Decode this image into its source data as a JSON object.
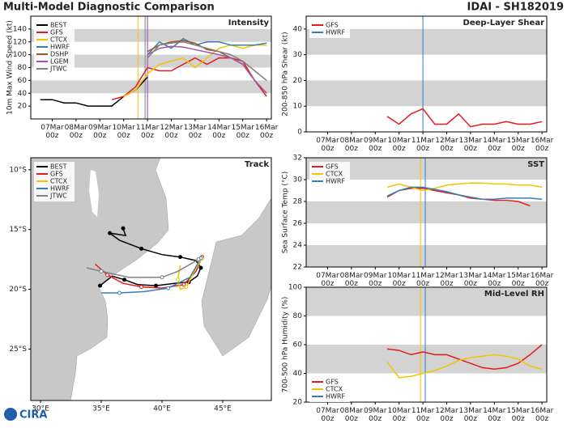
{
  "header": {
    "title": "Multi-Model Diagnostic Comparison",
    "storm": "IDAI - SH182019"
  },
  "logo": "CIRA",
  "chart_data": [
    {
      "type": "line",
      "title": "Intensity",
      "ylabel": "10m Max Wind Speed (kt)",
      "legend": "upper left",
      "x": [
        6.5,
        7,
        7.5,
        8,
        8.5,
        9,
        9.5,
        10,
        10.5,
        11,
        11.5,
        12,
        12.5,
        13,
        13.5,
        14,
        14.5,
        15,
        15.5,
        16
      ],
      "xlim": [
        6.1,
        16.2
      ],
      "ylim": [
        0,
        160
      ],
      "yticks": [
        20,
        40,
        60,
        80,
        100,
        120,
        140
      ],
      "xticks": [
        {
          "value": 7,
          "label": "07Mar 00z"
        },
        {
          "value": 8,
          "label": "08Mar 00z"
        },
        {
          "value": 9,
          "label": "09Mar 00z"
        },
        {
          "value": 10,
          "label": "10Mar 00z"
        },
        {
          "value": 11,
          "label": "11Mar 00z"
        },
        {
          "value": 12,
          "label": "12Mar 00z"
        },
        {
          "value": 13,
          "label": "13Mar 00z"
        },
        {
          "value": 14,
          "label": "14Mar 00z"
        },
        {
          "value": 15,
          "label": "15Mar 00z"
        },
        {
          "value": 16,
          "label": "16Mar 00z"
        }
      ],
      "vlines": [
        {
          "x": 10.6,
          "color": "#f2c500"
        },
        {
          "x": 10.9,
          "color": "#808080"
        },
        {
          "x": 11.0,
          "color": "#8e44ad"
        }
      ],
      "series": [
        {
          "name": "BEST",
          "color": "#000000",
          "values": [
            30,
            30,
            25,
            25,
            20,
            20,
            20,
            35,
            45,
            65,
            null,
            null,
            null,
            null,
            null,
            null,
            null,
            null,
            null,
            null
          ]
        },
        {
          "name": "GFS",
          "color": "#e41a1c",
          "values": [
            null,
            null,
            null,
            null,
            null,
            null,
            30,
            35,
            50,
            80,
            75,
            75,
            85,
            95,
            85,
            95,
            95,
            90,
            60,
            35
          ]
        },
        {
          "name": "CTCX",
          "color": "#f2c500",
          "values": [
            null,
            null,
            null,
            null,
            null,
            null,
            null,
            35,
            45,
            70,
            85,
            90,
            95,
            80,
            95,
            110,
            115,
            110,
            115,
            115
          ]
        },
        {
          "name": "HWRF",
          "color": "#377eb8",
          "values": [
            null,
            null,
            null,
            null,
            null,
            null,
            null,
            null,
            null,
            100,
            120,
            110,
            125,
            115,
            120,
            120,
            115,
            115,
            115,
            118
          ]
        },
        {
          "name": "DSHP",
          "color": "#a0522d",
          "values": [
            null,
            null,
            null,
            null,
            null,
            null,
            null,
            null,
            null,
            105,
            115,
            120,
            122,
            118,
            108,
            105,
            95,
            85,
            60,
            40
          ]
        },
        {
          "name": "LGEM",
          "color": "#9b59b6",
          "values": [
            null,
            null,
            null,
            null,
            null,
            null,
            null,
            null,
            null,
            100,
            110,
            113,
            112,
            108,
            104,
            100,
            95,
            85,
            60,
            40
          ]
        },
        {
          "name": "JTWC",
          "color": "#808080",
          "values": [
            null,
            null,
            null,
            null,
            null,
            null,
            null,
            null,
            null,
            95,
            115,
            118,
            120,
            115,
            110,
            105,
            100,
            90,
            75,
            60
          ]
        }
      ]
    },
    {
      "type": "line",
      "title": "Deep-Layer Shear",
      "ylabel": "200-850 hPa Shear (kt)",
      "legend": "upper left",
      "x": [
        9.5,
        10,
        10.5,
        11,
        11.5,
        12,
        12.5,
        13,
        13.5,
        14,
        14.5,
        15,
        15.5,
        16
      ],
      "xlim": [
        6.1,
        16.2
      ],
      "ylim": [
        0,
        45
      ],
      "yticks": [
        0,
        10,
        20,
        30,
        40
      ],
      "xticks": [
        {
          "value": 7,
          "label": "07Mar 00z"
        },
        {
          "value": 8,
          "label": "08Mar 00z"
        },
        {
          "value": 9,
          "label": "09Mar 00z"
        },
        {
          "value": 10,
          "label": "10Mar 00z"
        },
        {
          "value": 11,
          "label": "11Mar 00z"
        },
        {
          "value": 12,
          "label": "12Mar 00z"
        },
        {
          "value": 13,
          "label": "13Mar 00z"
        },
        {
          "value": 14,
          "label": "14Mar 00z"
        },
        {
          "value": 15,
          "label": "15Mar 00z"
        },
        {
          "value": 16,
          "label": "16Mar 00z"
        }
      ],
      "vlines": [
        {
          "x": 11.0,
          "color": "#377eb8"
        }
      ],
      "series": [
        {
          "name": "GFS",
          "color": "#e41a1c",
          "values": [
            6,
            3,
            7,
            9,
            3,
            3,
            7,
            2,
            3,
            3,
            4,
            3,
            3,
            4
          ]
        },
        {
          "name": "HWRF",
          "color": "#377eb8",
          "values": [
            null,
            null,
            null,
            null,
            null,
            null,
            null,
            null,
            null,
            null,
            null,
            null,
            null,
            null
          ]
        }
      ]
    },
    {
      "type": "track",
      "title": "Track",
      "legend": "upper left",
      "xlim": [
        29.2,
        49
      ],
      "ylim": [
        -29.3,
        -9
      ],
      "xticks": [
        {
          "value": 30,
          "label": "30°E"
        },
        {
          "value": 35,
          "label": "35°E"
        },
        {
          "value": 40,
          "label": "40°E"
        },
        {
          "value": 45,
          "label": "45°E"
        }
      ],
      "yticks": [
        {
          "value": -10,
          "label": "10°S"
        },
        {
          "value": -15,
          "label": "15°S"
        },
        {
          "value": -20,
          "label": "20°S"
        },
        {
          "value": -25,
          "label": "25°S"
        }
      ],
      "series": [
        {
          "name": "BEST",
          "color": "#000000",
          "x": [
            36.8,
            37.0,
            35.7,
            36.5,
            38.3,
            40.0,
            41.5,
            42.8,
            43.2,
            42.9,
            42.2,
            41.0,
            39.5,
            38.0,
            36.9,
            35.9,
            34.9
          ],
          "values": [
            -14.9,
            -15.5,
            -15.3,
            -15.9,
            -16.6,
            -17.1,
            -17.3,
            -17.6,
            -18.2,
            -18.9,
            -19.4,
            -19.5,
            -19.7,
            -19.6,
            -19.2,
            -18.9,
            -19.7
          ]
        },
        {
          "name": "GFS",
          "color": "#e41a1c",
          "x": [
            43.3,
            42.8,
            41.8,
            40.0,
            38.3,
            36.8,
            35.5,
            34.5
          ],
          "values": [
            -17.3,
            -18.5,
            -19.6,
            -19.9,
            -19.8,
            -19.5,
            -18.8,
            -17.9
          ]
        },
        {
          "name": "CTCX",
          "color": "#f2c500",
          "x": [
            43.3,
            42.6,
            42.0,
            41.5,
            41.3,
            41.5
          ],
          "values": [
            -17.4,
            -18.6,
            -19.8,
            -20.0,
            -19.2,
            -18.0
          ]
        },
        {
          "name": "HWRF",
          "color": "#377eb8",
          "x": [
            43.2,
            42.3,
            40.5,
            38.5,
            36.5,
            35.0
          ],
          "values": [
            -17.4,
            -19.0,
            -19.9,
            -20.2,
            -20.3,
            -20.3
          ]
        },
        {
          "name": "JTWC",
          "color": "#808080",
          "x": [
            43.0,
            41.3,
            40.0,
            37.3,
            35.0,
            33.8
          ],
          "values": [
            -17.5,
            -18.5,
            -19.0,
            -19.0,
            -18.5,
            -18.2
          ]
        }
      ]
    },
    {
      "type": "line",
      "title": "SST",
      "ylabel": "Sea Surface Temp (°C)",
      "legend": "upper left",
      "x": [
        9.5,
        10,
        10.5,
        11,
        11.5,
        12,
        12.5,
        13,
        13.5,
        14,
        14.5,
        15,
        15.5,
        16
      ],
      "xlim": [
        6.1,
        16.2
      ],
      "ylim": [
        22,
        32
      ],
      "yticks": [
        22,
        24,
        26,
        28,
        30,
        32
      ],
      "xticks": [
        {
          "value": 7,
          "label": "07Mar 00z"
        },
        {
          "value": 8,
          "label": "08Mar 00z"
        },
        {
          "value": 9,
          "label": "09Mar 00z"
        },
        {
          "value": 10,
          "label": "10Mar 00z"
        },
        {
          "value": 11,
          "label": "11Mar 00z"
        },
        {
          "value": 12,
          "label": "12Mar 00z"
        },
        {
          "value": 13,
          "label": "13Mar 00z"
        },
        {
          "value": 14,
          "label": "14Mar 00z"
        },
        {
          "value": 15,
          "label": "15Mar 00z"
        },
        {
          "value": 16,
          "label": "16Mar 00z"
        }
      ],
      "vlines": [
        {
          "x": 10.9,
          "color": "#f2c500"
        },
        {
          "x": 11.1,
          "color": "#377eb8"
        }
      ],
      "series": [
        {
          "name": "GFS",
          "color": "#e41a1c",
          "values": [
            28.4,
            29.0,
            29.2,
            29.2,
            29.0,
            28.8,
            28.6,
            28.3,
            28.2,
            28.1,
            28.1,
            28.0,
            27.6,
            null
          ]
        },
        {
          "name": "CTCX",
          "color": "#f2c500",
          "values": [
            29.3,
            29.6,
            29.3,
            29.0,
            29.2,
            29.5,
            29.6,
            29.7,
            29.7,
            29.6,
            29.6,
            29.5,
            29.5,
            29.3
          ]
        },
        {
          "name": "HWRF",
          "color": "#377eb8",
          "values": [
            28.5,
            29.0,
            29.3,
            29.3,
            29.1,
            28.9,
            28.6,
            28.4,
            28.2,
            28.2,
            28.3,
            28.3,
            28.3,
            28.2
          ]
        }
      ]
    },
    {
      "type": "line",
      "title": "Mid-Level RH",
      "ylabel": "700-500 hPa Humidity (%)",
      "legend": "lower left",
      "x": [
        9.5,
        10,
        10.5,
        11,
        11.5,
        12,
        12.5,
        13,
        13.5,
        14,
        14.5,
        15,
        15.5,
        16
      ],
      "xlim": [
        6.1,
        16.2
      ],
      "ylim": [
        20,
        100
      ],
      "yticks": [
        20,
        40,
        60,
        80,
        100
      ],
      "xticks": [
        {
          "value": 7,
          "label": "07Mar 00z"
        },
        {
          "value": 8,
          "label": "08Mar 00z"
        },
        {
          "value": 9,
          "label": "09Mar 00z"
        },
        {
          "value": 10,
          "label": "10Mar 00z"
        },
        {
          "value": 11,
          "label": "11Mar 00z"
        },
        {
          "value": 12,
          "label": "12Mar 00z"
        },
        {
          "value": 13,
          "label": "13Mar 00z"
        },
        {
          "value": 14,
          "label": "14Mar 00z"
        },
        {
          "value": 15,
          "label": "15Mar 00z"
        },
        {
          "value": 16,
          "label": "16Mar 00z"
        }
      ],
      "vlines": [
        {
          "x": 10.9,
          "color": "#f2c500"
        },
        {
          "x": 11.1,
          "color": "#377eb8"
        }
      ],
      "series": [
        {
          "name": "GFS",
          "color": "#e41a1c",
          "values": [
            57,
            56,
            53,
            55,
            53,
            53,
            50,
            47,
            44,
            43,
            44,
            47,
            53,
            60
          ]
        },
        {
          "name": "CTCX",
          "color": "#f2c500",
          "values": [
            48,
            37,
            38,
            40,
            42,
            45,
            49,
            51,
            52,
            53,
            52,
            50,
            45,
            43
          ]
        },
        {
          "name": "HWRF",
          "color": "#377eb8",
          "values": [
            null,
            null,
            null,
            null,
            null,
            null,
            null,
            null,
            null,
            null,
            null,
            null,
            null,
            null
          ]
        }
      ]
    }
  ]
}
